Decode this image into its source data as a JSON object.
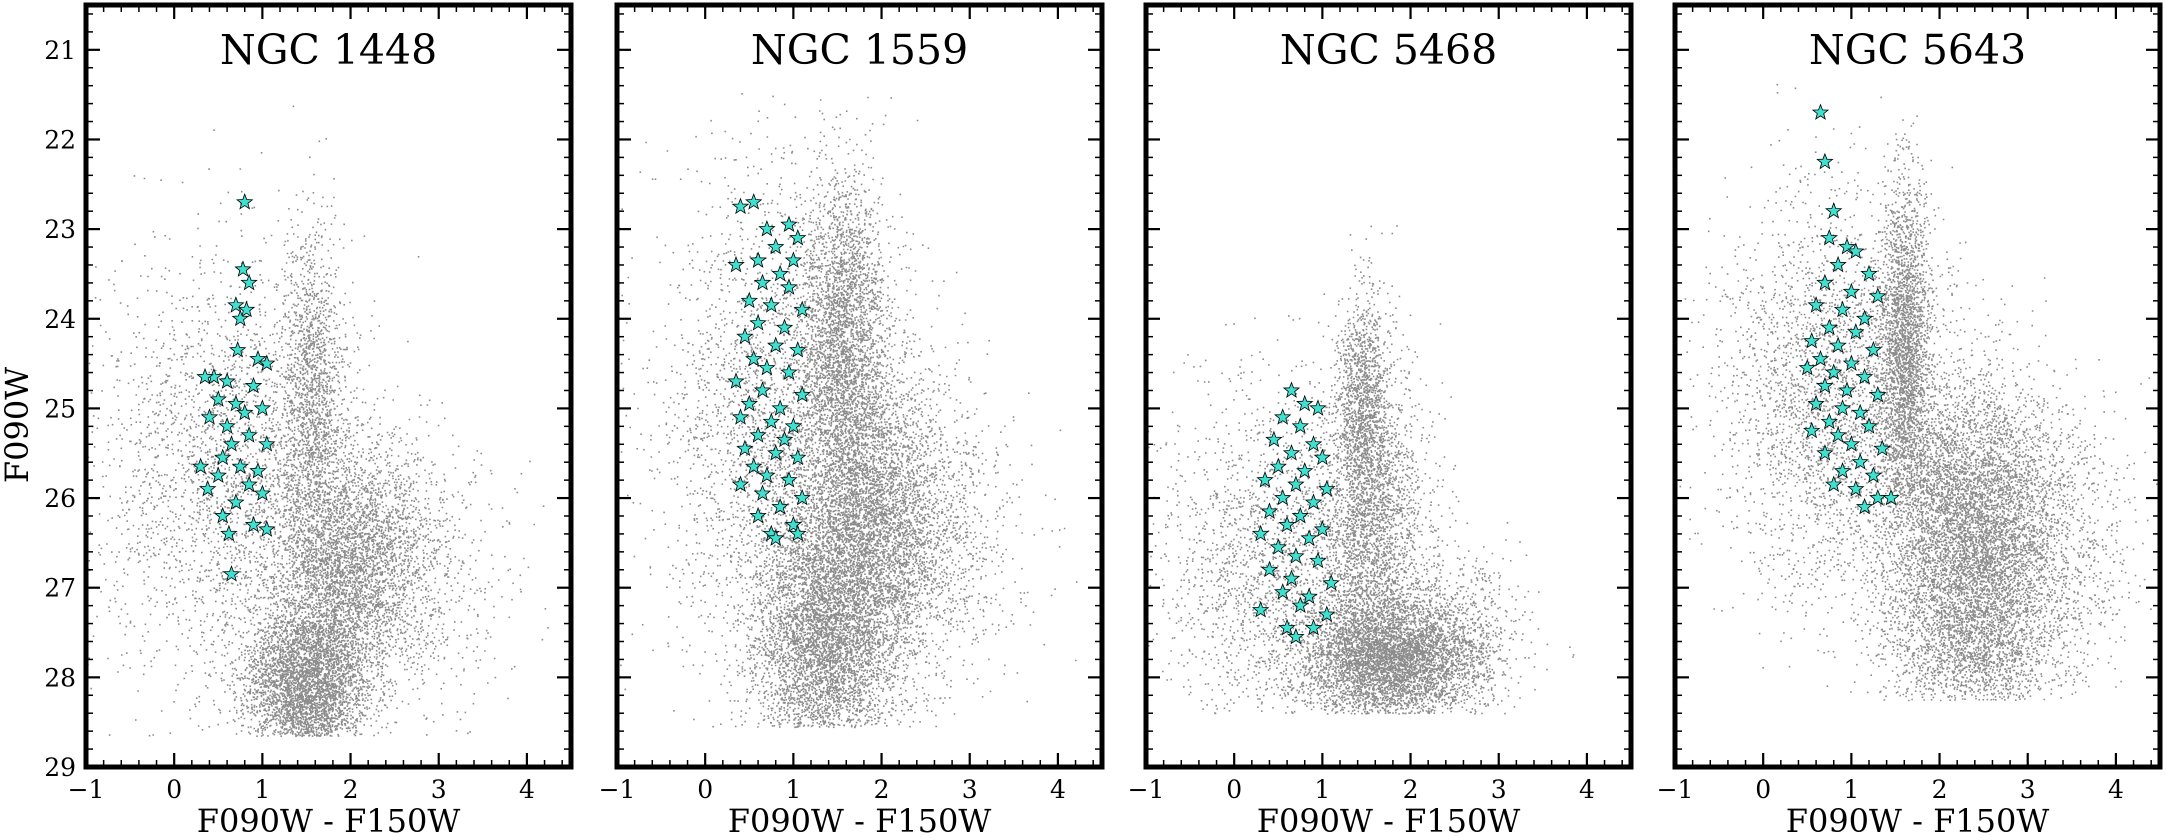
{
  "figure": {
    "ylabel": "F090W",
    "xlabel": "F090W - F150W"
  },
  "colors": {
    "field_stars": "#000000",
    "highlight": "#40e0d0",
    "highlight_edge": "#000000"
  },
  "chart_data": [
    {
      "type": "scatter",
      "title": "NGC 1448",
      "xlabel": "F090W - F150W",
      "ylabel": "F090W",
      "xlim": [
        -1,
        4.5
      ],
      "ylim": [
        29,
        20.5
      ],
      "y_inverted": true,
      "xticks": [
        -1,
        0,
        1,
        2,
        3,
        4
      ],
      "yticks": [
        21,
        22,
        23,
        24,
        25,
        26,
        27,
        28,
        29
      ],
      "highlight_points": [
        [
          0.8,
          22.7
        ],
        [
          0.78,
          23.45
        ],
        [
          0.85,
          23.6
        ],
        [
          0.7,
          23.85
        ],
        [
          0.82,
          23.9
        ],
        [
          0.75,
          24.0
        ],
        [
          0.72,
          24.35
        ],
        [
          0.95,
          24.45
        ],
        [
          1.05,
          24.5
        ],
        [
          0.45,
          24.65
        ],
        [
          0.35,
          24.65
        ],
        [
          0.6,
          24.7
        ],
        [
          0.9,
          24.75
        ],
        [
          0.5,
          24.9
        ],
        [
          0.7,
          24.95
        ],
        [
          0.8,
          25.05
        ],
        [
          1.0,
          25.0
        ],
        [
          0.4,
          25.1
        ],
        [
          0.6,
          25.2
        ],
        [
          0.85,
          25.3
        ],
        [
          0.65,
          25.4
        ],
        [
          1.05,
          25.4
        ],
        [
          0.55,
          25.55
        ],
        [
          0.3,
          25.65
        ],
        [
          0.75,
          25.65
        ],
        [
          0.95,
          25.7
        ],
        [
          0.5,
          25.75
        ],
        [
          0.85,
          25.85
        ],
        [
          0.38,
          25.9
        ],
        [
          1.0,
          25.95
        ],
        [
          0.7,
          26.05
        ],
        [
          0.55,
          26.2
        ],
        [
          0.9,
          26.3
        ],
        [
          0.62,
          26.4
        ],
        [
          1.05,
          26.35
        ],
        [
          0.65,
          26.85
        ]
      ],
      "field_stars": "dense black point cloud"
    },
    {
      "type": "scatter",
      "title": "NGC 1559",
      "xlabel": "F090W - F150W",
      "ylabel": "",
      "xlim": [
        -1,
        4.5
      ],
      "ylim": [
        29,
        20.5
      ],
      "y_inverted": true,
      "xticks": [
        -1,
        0,
        1,
        2,
        3,
        4
      ],
      "highlight_points": [
        [
          0.55,
          22.7
        ],
        [
          0.4,
          22.75
        ],
        [
          0.95,
          22.95
        ],
        [
          0.7,
          23.0
        ],
        [
          1.05,
          23.1
        ],
        [
          0.8,
          23.2
        ],
        [
          0.6,
          23.35
        ],
        [
          1.0,
          23.35
        ],
        [
          0.35,
          23.4
        ],
        [
          0.85,
          23.5
        ],
        [
          0.65,
          23.6
        ],
        [
          0.95,
          23.65
        ],
        [
          0.5,
          23.8
        ],
        [
          0.75,
          23.85
        ],
        [
          1.1,
          23.9
        ],
        [
          0.6,
          24.05
        ],
        [
          0.9,
          24.1
        ],
        [
          0.45,
          24.2
        ],
        [
          0.8,
          24.3
        ],
        [
          1.05,
          24.35
        ],
        [
          0.55,
          24.45
        ],
        [
          0.7,
          24.55
        ],
        [
          0.95,
          24.6
        ],
        [
          0.35,
          24.7
        ],
        [
          0.65,
          24.8
        ],
        [
          1.1,
          24.85
        ],
        [
          0.5,
          24.95
        ],
        [
          0.85,
          25.0
        ],
        [
          0.4,
          25.1
        ],
        [
          0.75,
          25.15
        ],
        [
          1.0,
          25.2
        ],
        [
          0.6,
          25.3
        ],
        [
          0.9,
          25.35
        ],
        [
          0.45,
          25.45
        ],
        [
          0.8,
          25.5
        ],
        [
          1.05,
          25.55
        ],
        [
          0.55,
          25.65
        ],
        [
          0.7,
          25.75
        ],
        [
          0.95,
          25.8
        ],
        [
          0.4,
          25.85
        ],
        [
          0.65,
          25.95
        ],
        [
          1.1,
          26.0
        ],
        [
          0.85,
          26.1
        ],
        [
          0.6,
          26.2
        ],
        [
          1.0,
          26.3
        ],
        [
          0.75,
          26.4
        ],
        [
          0.8,
          26.45
        ],
        [
          1.05,
          26.4
        ]
      ],
      "field_stars": "dense black point cloud"
    },
    {
      "type": "scatter",
      "title": "NGC 5468",
      "xlabel": "F090W - F150W",
      "ylabel": "",
      "xlim": [
        -1,
        4.5
      ],
      "ylim": [
        29,
        20.5
      ],
      "y_inverted": true,
      "xticks": [
        -1,
        0,
        1,
        2,
        3,
        4
      ],
      "highlight_points": [
        [
          0.65,
          24.8
        ],
        [
          0.8,
          24.95
        ],
        [
          0.95,
          25.0
        ],
        [
          0.55,
          25.1
        ],
        [
          0.75,
          25.2
        ],
        [
          0.45,
          25.35
        ],
        [
          0.9,
          25.4
        ],
        [
          0.65,
          25.5
        ],
        [
          1.0,
          25.55
        ],
        [
          0.5,
          25.65
        ],
        [
          0.8,
          25.7
        ],
        [
          0.35,
          25.8
        ],
        [
          0.7,
          25.85
        ],
        [
          1.05,
          25.9
        ],
        [
          0.55,
          26.0
        ],
        [
          0.9,
          26.05
        ],
        [
          0.4,
          26.15
        ],
        [
          0.75,
          26.2
        ],
        [
          0.6,
          26.3
        ],
        [
          1.0,
          26.35
        ],
        [
          0.3,
          26.4
        ],
        [
          0.85,
          26.45
        ],
        [
          0.5,
          26.55
        ],
        [
          0.7,
          26.65
        ],
        [
          0.95,
          26.7
        ],
        [
          0.4,
          26.8
        ],
        [
          0.65,
          26.9
        ],
        [
          1.1,
          26.95
        ],
        [
          0.55,
          27.05
        ],
        [
          0.85,
          27.1
        ],
        [
          0.75,
          27.2
        ],
        [
          0.3,
          27.25
        ],
        [
          1.05,
          27.3
        ],
        [
          0.6,
          27.45
        ],
        [
          0.9,
          27.45
        ],
        [
          0.7,
          27.55
        ]
      ],
      "field_stars": "dense black point cloud"
    },
    {
      "type": "scatter",
      "title": "NGC 5643",
      "xlabel": "F090W - F150W",
      "ylabel": "",
      "xlim": [
        -1,
        4.5
      ],
      "ylim": [
        29,
        20.5
      ],
      "y_inverted": true,
      "xticks": [
        -1,
        0,
        1,
        2,
        3,
        4
      ],
      "highlight_points": [
        [
          0.65,
          21.7
        ],
        [
          0.7,
          22.25
        ],
        [
          0.8,
          22.8
        ],
        [
          0.75,
          23.1
        ],
        [
          0.95,
          23.2
        ],
        [
          1.05,
          23.25
        ],
        [
          0.85,
          23.4
        ],
        [
          1.2,
          23.5
        ],
        [
          0.7,
          23.6
        ],
        [
          1.0,
          23.7
        ],
        [
          1.3,
          23.75
        ],
        [
          0.6,
          23.85
        ],
        [
          0.9,
          23.9
        ],
        [
          1.15,
          24.0
        ],
        [
          0.75,
          24.1
        ],
        [
          1.05,
          24.15
        ],
        [
          0.55,
          24.25
        ],
        [
          0.85,
          24.3
        ],
        [
          1.25,
          24.35
        ],
        [
          0.65,
          24.45
        ],
        [
          1.0,
          24.5
        ],
        [
          0.5,
          24.55
        ],
        [
          0.8,
          24.6
        ],
        [
          1.15,
          24.65
        ],
        [
          0.7,
          24.75
        ],
        [
          0.95,
          24.8
        ],
        [
          1.3,
          24.85
        ],
        [
          0.6,
          24.95
        ],
        [
          0.9,
          25.0
        ],
        [
          1.1,
          25.05
        ],
        [
          0.75,
          25.15
        ],
        [
          1.2,
          25.2
        ],
        [
          0.55,
          25.25
        ],
        [
          0.85,
          25.3
        ],
        [
          1.0,
          25.4
        ],
        [
          1.35,
          25.45
        ],
        [
          0.7,
          25.5
        ],
        [
          1.1,
          25.6
        ],
        [
          0.9,
          25.7
        ],
        [
          1.25,
          25.75
        ],
        [
          0.8,
          25.85
        ],
        [
          1.05,
          25.9
        ],
        [
          1.3,
          26.0
        ],
        [
          1.45,
          26.0
        ],
        [
          1.15,
          26.1
        ]
      ],
      "field_stars": "dense black point cloud"
    }
  ]
}
